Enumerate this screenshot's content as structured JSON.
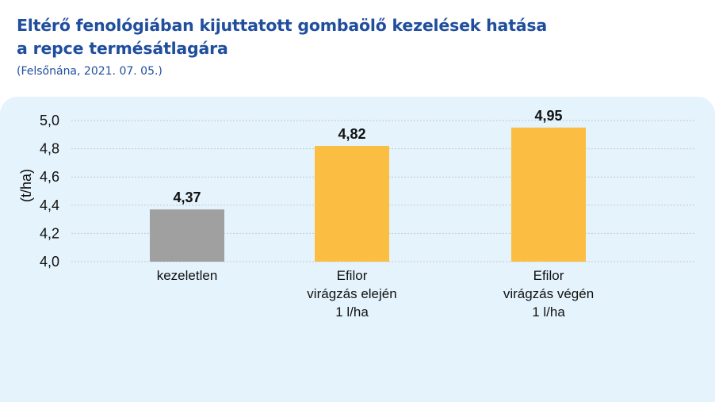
{
  "header": {
    "title_line1": "Eltérő fenológiában kijuttatott gombaölő kezelések hatása",
    "title_line2": "a repce termésátlagára",
    "subtitle": "(Felsőnána, 2021. 07. 05.)"
  },
  "chart_data": {
    "type": "bar",
    "title": "Eltérő fenológiában kijuttatott gombaölő kezelések hatása a repce termésátlagára",
    "subtitle": "(Felsőnána, 2021. 07. 05.)",
    "ylabel": "(t/ha)",
    "xlabel": "",
    "ylim": [
      4.0,
      5.0
    ],
    "yticks": [
      "4,0",
      "4,2",
      "4,4",
      "4,6",
      "4,8",
      "5,0"
    ],
    "grid": true,
    "categories": [
      [
        "kezeletlen"
      ],
      [
        "Efilor",
        "virágzás elején",
        "1 l/ha"
      ],
      [
        "Efilor",
        "virágzás végén",
        "1 l/ha"
      ]
    ],
    "values": [
      4.37,
      4.82,
      4.95
    ],
    "value_labels": [
      "4,37",
      "4,82",
      "4,95"
    ],
    "colors": [
      "#a0a0a0",
      "#fbbd42",
      "#fbbd42"
    ]
  }
}
